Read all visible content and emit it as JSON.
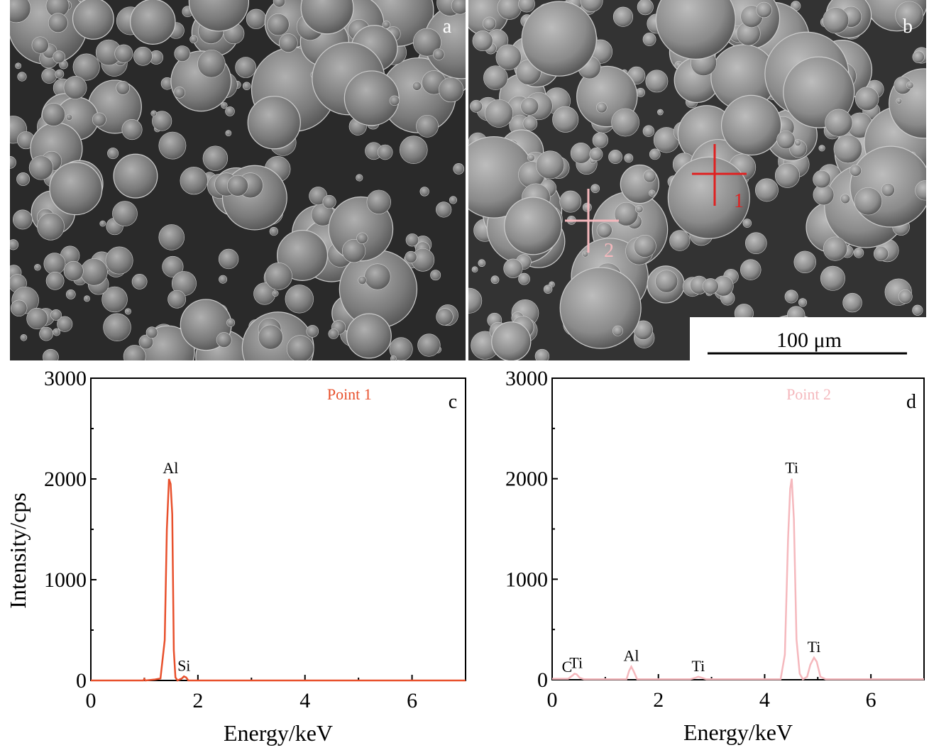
{
  "panels": {
    "a": {
      "label": "a"
    },
    "b": {
      "label": "b",
      "scale_bar": "100 μm",
      "marker_1": "1",
      "marker_2": "2"
    }
  },
  "colors": {
    "point1": "#e8502c",
    "point2": "#f5b8bd",
    "sem_bg": "#2a2a2a"
  },
  "chart_data": [
    {
      "type": "line",
      "panel_label": "c",
      "legend": "Point 1",
      "xlabel": "Energy/keV",
      "ylabel": "Intensity/cps",
      "xlim": [
        0,
        7
      ],
      "ylim": [
        0,
        3000
      ],
      "xticks": [
        "0",
        "2",
        "4",
        "6"
      ],
      "yticks": [
        "0",
        "1000",
        "2000",
        "3000"
      ],
      "grid": false,
      "color": "#e8502c",
      "annotations": [
        {
          "text": "Al",
          "x": 1.49,
          "y": 2000
        },
        {
          "text": "Si",
          "x": 1.74,
          "y": 40
        }
      ],
      "series": [
        {
          "x": [
            0,
            0.98,
            1.0,
            1.02,
            1.2,
            1.3,
            1.38,
            1.42,
            1.46,
            1.49,
            1.52,
            1.55,
            1.58,
            1.62,
            1.7,
            1.74,
            1.78,
            1.82,
            2.0,
            7
          ],
          "y": [
            0,
            0,
            15,
            0,
            10,
            20,
            400,
            1500,
            2000,
            1950,
            1650,
            300,
            30,
            0,
            20,
            40,
            30,
            0,
            0,
            0
          ]
        }
      ]
    },
    {
      "type": "line",
      "panel_label": "d",
      "legend": "Point 2",
      "xlabel": "Energy/keV",
      "xlim": [
        0,
        7
      ],
      "ylim": [
        0,
        3000
      ],
      "xticks": [
        "0",
        "2",
        "4",
        "6"
      ],
      "yticks": [
        "0",
        "1000",
        "2000",
        "3000"
      ],
      "grid": false,
      "color": "#f5b8bd",
      "annotations": [
        {
          "text": "C",
          "x": 0.28,
          "y": 20
        },
        {
          "text": "Ti",
          "x": 0.45,
          "y": 60
        },
        {
          "text": "Al",
          "x": 1.49,
          "y": 130
        },
        {
          "text": "Ti",
          "x": 2.75,
          "y": 30
        },
        {
          "text": "Ti",
          "x": 4.51,
          "y": 2000
        },
        {
          "text": "Ti",
          "x": 4.93,
          "y": 220
        }
      ],
      "series": [
        {
          "x": [
            0,
            0.3,
            0.38,
            0.42,
            0.46,
            0.52,
            0.6,
            1.4,
            1.45,
            1.49,
            1.53,
            1.6,
            2.6,
            2.7,
            2.75,
            2.82,
            2.9,
            4.3,
            4.38,
            4.44,
            4.48,
            4.51,
            4.55,
            4.6,
            4.66,
            4.72,
            4.8,
            4.86,
            4.93,
            4.98,
            5.05,
            5.15,
            7
          ],
          "y": [
            10,
            10,
            40,
            60,
            55,
            20,
            5,
            5,
            90,
            130,
            90,
            5,
            5,
            20,
            30,
            20,
            5,
            5,
            250,
            1400,
            1900,
            2000,
            1600,
            400,
            60,
            5,
            30,
            150,
            220,
            180,
            30,
            5,
            5
          ]
        }
      ]
    }
  ]
}
